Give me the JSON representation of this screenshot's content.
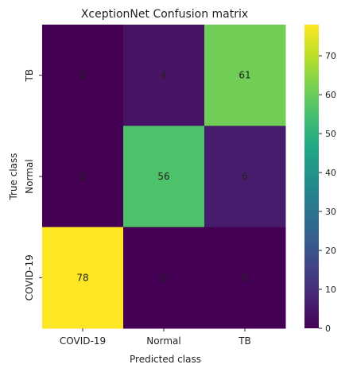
{
  "chart_data": {
    "type": "heatmap",
    "title": "XceptionNet Confusion matrix",
    "xlabel": "Predicted class",
    "ylabel": "True class",
    "x_categories": [
      "COVID-19",
      "Normal",
      "TB"
    ],
    "y_categories": [
      "TB",
      "Normal",
      "COVID-19"
    ],
    "values": [
      [
        0,
        4,
        61
      ],
      [
        0,
        56,
        6
      ],
      [
        78,
        0,
        0
      ]
    ],
    "colormap": "viridis",
    "colorbar": {
      "min": 0,
      "max": 78,
      "ticks": [
        0,
        10,
        20,
        30,
        40,
        50,
        60,
        70
      ]
    },
    "grid": false
  }
}
